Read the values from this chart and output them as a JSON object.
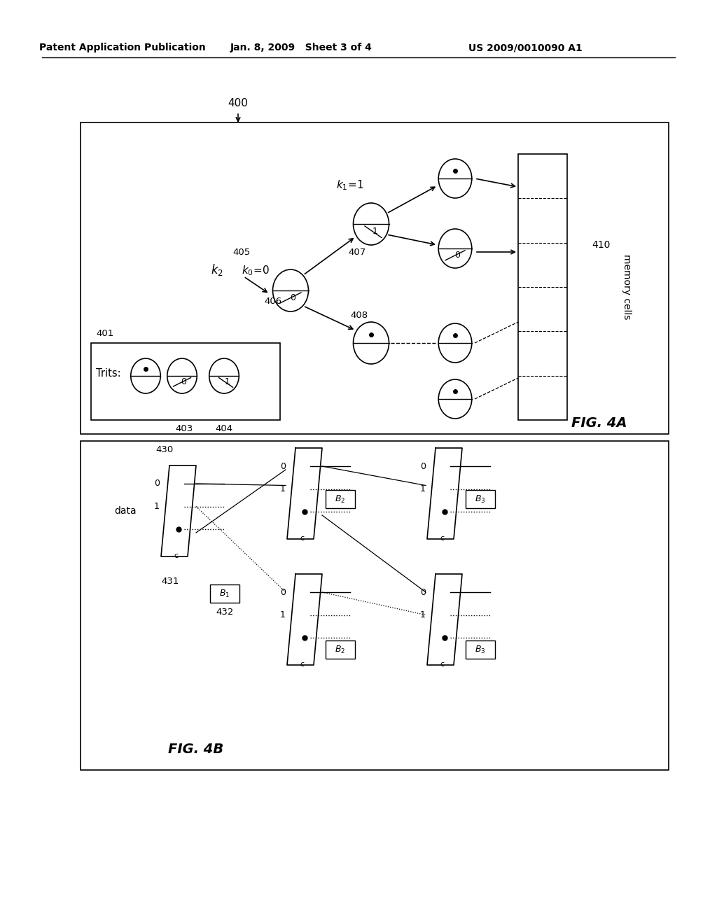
{
  "bg_color": "#ffffff",
  "header_left": "Patent Application Publication",
  "header_center": "Jan. 8, 2009   Sheet 3 of 4",
  "header_right": "US 2009/0010090 A1",
  "fig4a_label": "FIG. 4A",
  "fig4b_label": "FIG. 4B",
  "label_400": "400",
  "label_401": "401",
  "label_403": "403",
  "label_404": "404",
  "label_405": "405",
  "label_406": "406",
  "label_407": "407",
  "label_408": "408",
  "label_410": "410",
  "label_430": "430",
  "label_431": "431",
  "label_432": "432",
  "label_k2": "k_2",
  "label_k0": "k_0=0",
  "label_k1": "k_1=1",
  "label_trits": "Trits:",
  "label_data": "data",
  "label_memory": "memory cells",
  "label_B1": "B_1",
  "label_B2": "B_2",
  "label_B3": "B_3"
}
